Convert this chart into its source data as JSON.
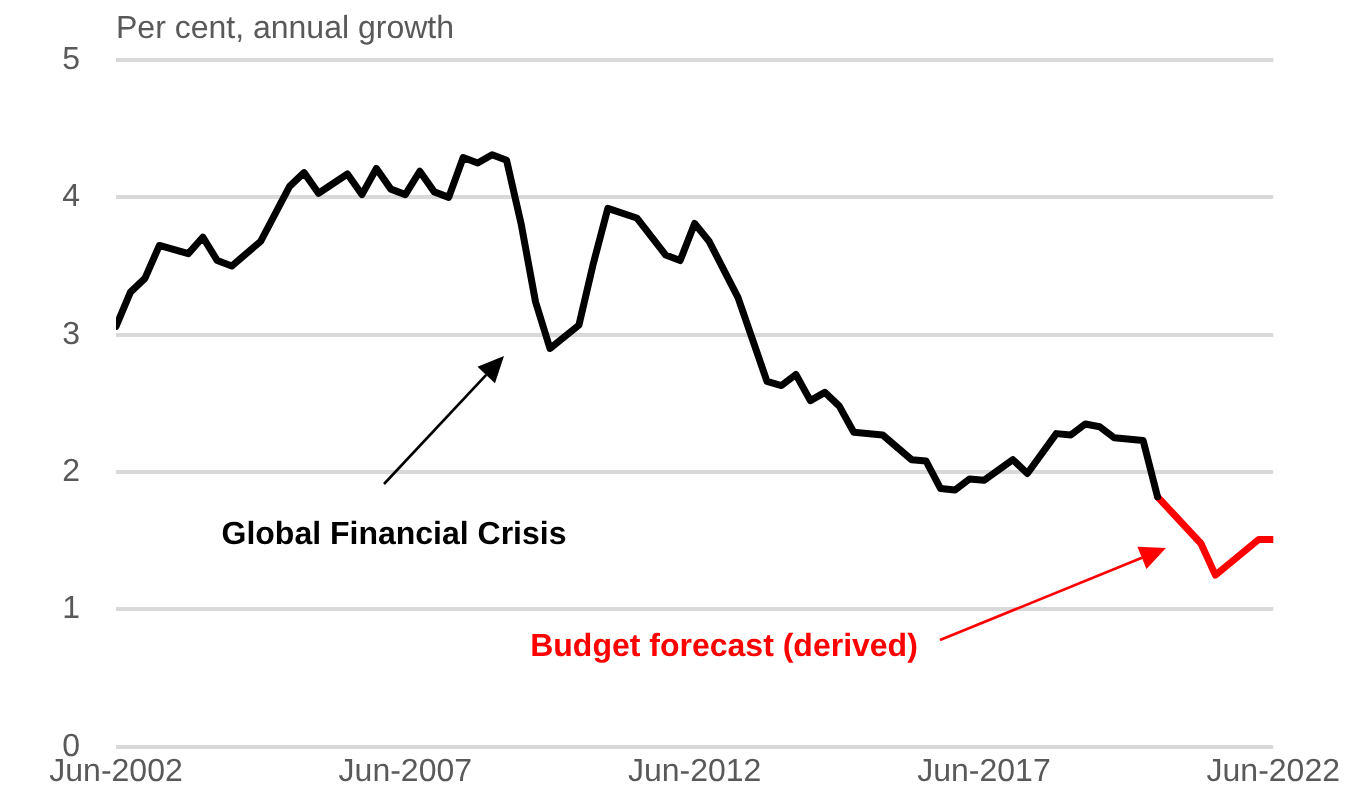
{
  "chart_data": {
    "type": "line",
    "ylabel": "Per cent, annual growth",
    "xlim": [
      "2002-06",
      "2022-06"
    ],
    "xticks": [
      {
        "value": "2002-06",
        "label": "Jun-2002"
      },
      {
        "value": "2007-06",
        "label": "Jun-2007"
      },
      {
        "value": "2012-06",
        "label": "Jun-2012"
      },
      {
        "value": "2017-06",
        "label": "Jun-2017"
      },
      {
        "value": "2022-06",
        "label": "Jun-2022"
      }
    ],
    "ylim": [
      0,
      5
    ],
    "yticks": [
      0,
      1,
      2,
      3,
      4,
      5
    ],
    "grid": "y",
    "legend": false,
    "line_style": "solid",
    "marker": "none",
    "series": [
      {
        "color": "#000000",
        "x": [
          "2002-06",
          "2002-09",
          "2002-12",
          "2003-03",
          "2003-09",
          "2003-12",
          "2004-03",
          "2004-06",
          "2004-12",
          "2005-06",
          "2005-09",
          "2005-12",
          "2006-06",
          "2006-09",
          "2006-12",
          "2007-03",
          "2007-06",
          "2007-09",
          "2007-12",
          "2008-03",
          "2008-06",
          "2008-09",
          "2008-12",
          "2009-03",
          "2009-06",
          "2009-09",
          "2009-12",
          "2010-06",
          "2010-09",
          "2010-12",
          "2011-06",
          "2011-12",
          "2012-03",
          "2012-06",
          "2012-09",
          "2013-03",
          "2013-09",
          "2013-12",
          "2014-03",
          "2014-06",
          "2014-09",
          "2014-12",
          "2015-03",
          "2015-09",
          "2016-03",
          "2016-06",
          "2016-09",
          "2016-12",
          "2017-03",
          "2017-06",
          "2017-12",
          "2018-03",
          "2018-09",
          "2018-12",
          "2019-03",
          "2019-06",
          "2019-09",
          "2020-03",
          "2020-06"
        ],
        "values": [
          3.06,
          3.31,
          3.41,
          3.65,
          3.59,
          3.71,
          3.54,
          3.5,
          3.68,
          4.08,
          4.18,
          4.03,
          4.17,
          4.02,
          4.21,
          4.06,
          4.02,
          4.19,
          4.04,
          4.0,
          4.29,
          4.25,
          4.31,
          4.27,
          3.81,
          3.24,
          2.9,
          3.07,
          3.52,
          3.92,
          3.85,
          3.58,
          3.54,
          3.81,
          3.68,
          3.27,
          2.66,
          2.63,
          2.71,
          2.52,
          2.58,
          2.48,
          2.29,
          2.27,
          2.09,
          2.08,
          1.88,
          1.87,
          1.95,
          1.94,
          2.09,
          1.99,
          2.28,
          2.27,
          2.35,
          2.33,
          2.25,
          2.23,
          1.82
        ]
      },
      {
        "color": "#ff0000",
        "x": [
          "2020-06",
          "2021-03",
          "2021-06",
          "2022-03",
          "2022-06"
        ],
        "values": [
          1.82,
          1.48,
          1.25,
          1.51,
          1.51
        ]
      }
    ],
    "annotations": [
      "Global Financial Crisis",
      "Budget forecast (derived)"
    ]
  }
}
